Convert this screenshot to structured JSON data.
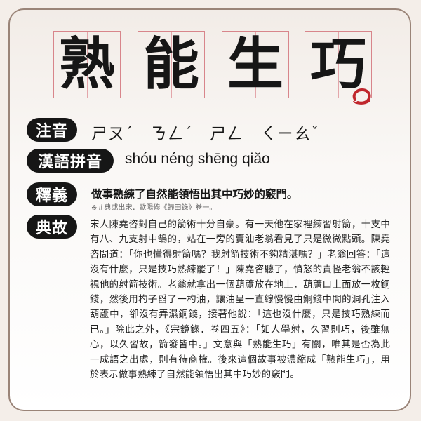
{
  "title_chars": [
    "熟",
    "能",
    "生",
    "巧"
  ],
  "labels": {
    "zhuyin": "注音",
    "pinyin": "漢語拼音",
    "definition": "釋義",
    "story": "典故"
  },
  "zhuyin": "ㄕㄡˊ　ㄋㄥˊ　ㄕㄥ　ㄑㄧㄠˇ",
  "pinyin": "shóu néng shēng qiǎo",
  "definition": "做事熟練了自然能領悟出其中巧妙的竅門。",
  "source_note": "※＃典或出宋．歐陽修《歸田錄》卷一。",
  "story": "宋人陳堯咨對自己的箭術十分自豪。有一天他在家裡練習射箭，十支中有八、九支射中鵠的，站在一旁的賣油老翁看見了只是微微點頭。陳堯咨問道：「你也懂得射箭嗎？我射箭技術不夠精湛嗎？」老翁回答：「這沒有什麼，只是技巧熟練罷了！」陳堯咨聽了，憤怒的責怪老翁不該輕視他的射箭技術。老翁就拿出一個葫蘆放在地上，葫蘆口上面放一枚銅錢，然後用杓子舀了一杓油，讓油呈一直線慢慢由銅錢中間的洞孔注入葫蘆中，卻沒有弄濕銅錢，接著他說：「這也沒什麼，只是技巧熟練而已。」除此之外，《宗鏡錄．卷四五》：「如人學射，久習則巧，後雖無心，以久習故，箭發皆中。」文意與「熟能生巧」有關，唯其是否為此一成語之出處，則有待商榷。後來這個故事被濃縮成「熟能生巧」，用於表示做事熟練了自然能領悟出其中巧妙的竅門。",
  "colors": {
    "grid": "#d8858b",
    "seal": "#c0272d",
    "label_bg": "#161616",
    "border": "#9a8478"
  }
}
